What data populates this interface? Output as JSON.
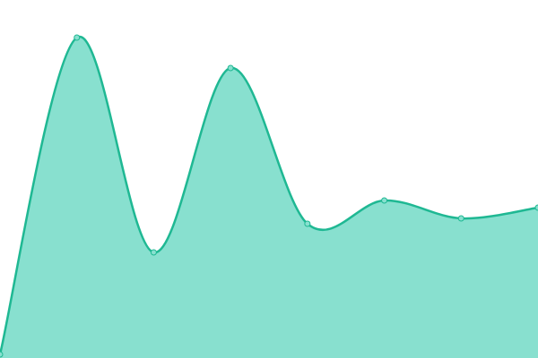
{
  "chart_data": {
    "type": "area",
    "categories": [
      null,
      null,
      null,
      null,
      null,
      null,
      null,
      null
    ],
    "values": [
      1,
      89.5,
      29.5,
      81,
      37.5,
      44,
      39,
      42
    ],
    "color": "#1fb893",
    "fill_color": "#88e0cf",
    "ylim": [
      0,
      100
    ]
  }
}
